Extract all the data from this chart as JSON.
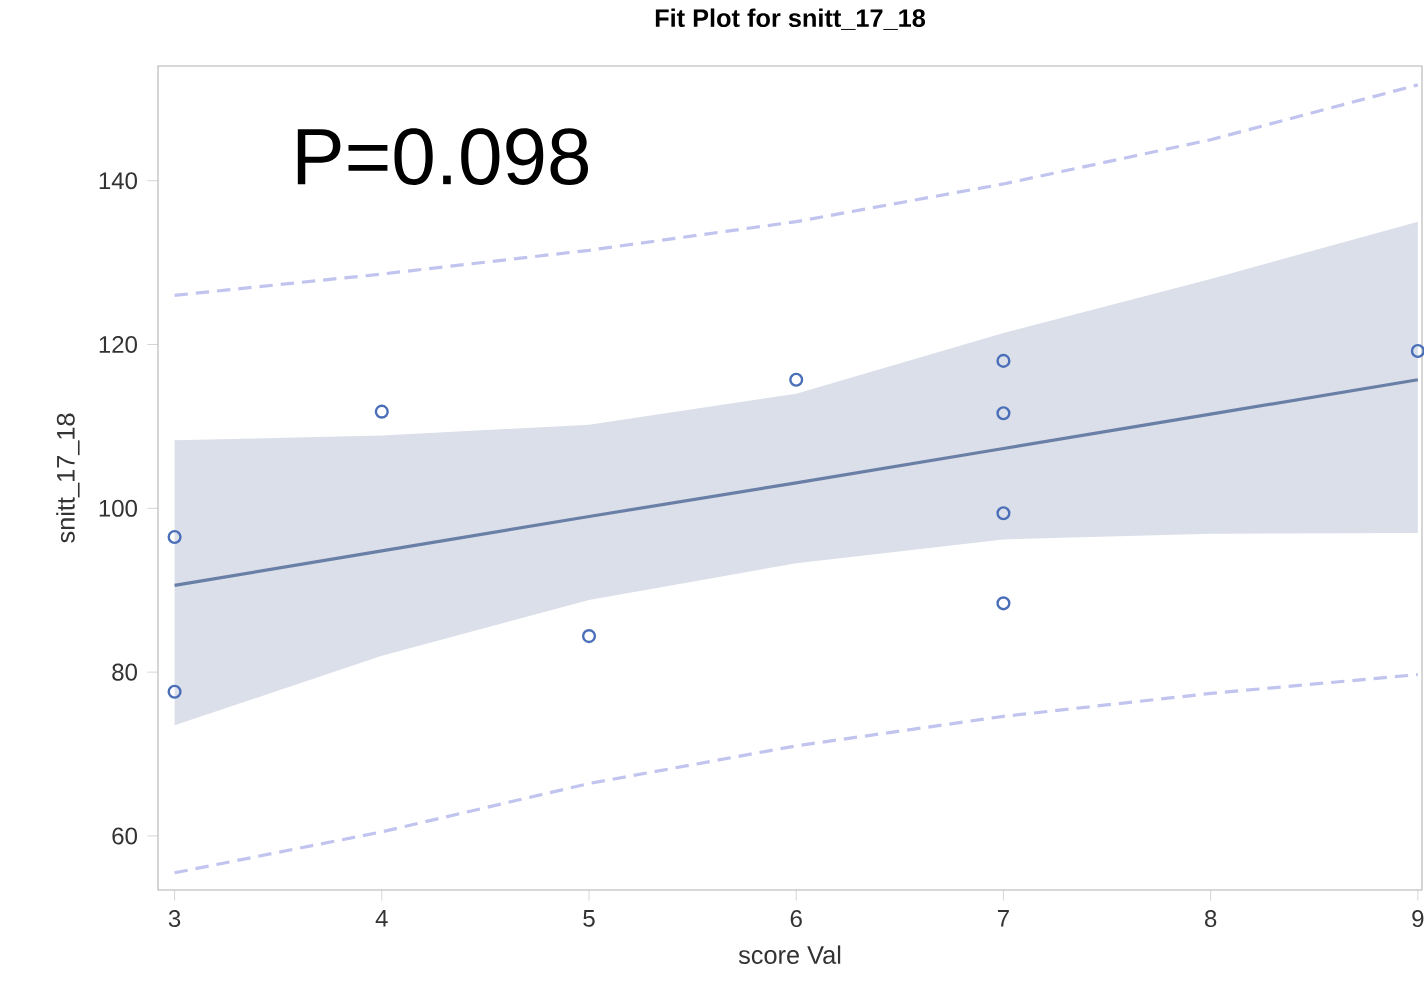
{
  "chart_data": {
    "type": "scatter",
    "title": "Fit Plot for snitt_17_18",
    "xlabel": "score Val",
    "ylabel": "snitt_17_18",
    "annotations": [
      "P=0.098"
    ],
    "xlim": [
      2.92,
      9.02
    ],
    "ylim": [
      53.4,
      154
    ],
    "xticks": [
      3,
      4,
      5,
      6,
      7,
      8,
      9
    ],
    "yticks": [
      60,
      80,
      100,
      120,
      140
    ],
    "series": [
      {
        "type": "line",
        "color": "#6a7fa6",
        "x": [
          3,
          4,
          5,
          6,
          7,
          8,
          9
        ],
        "values": [
          90.6,
          94.8,
          99.0,
          103.1,
          107.3,
          111.5,
          115.7
        ],
        "lower": [
          73.5,
          82.0,
          88.8,
          93.3,
          96.2,
          96.9,
          97.0
        ],
        "upper": [
          108.3,
          108.9,
          110.2,
          114.0,
          121.4,
          128.0,
          135.0
        ],
        "line_style": "solid",
        "marker": "none"
      },
      {
        "type": "line",
        "color": "#c0c4ee",
        "x": [
          3,
          4,
          5,
          6,
          7,
          8,
          9
        ],
        "values": [
          126.0,
          128.6,
          131.5,
          135.0,
          139.6,
          145.0,
          151.7
        ],
        "line_style": "dashed",
        "marker": "none"
      },
      {
        "type": "line",
        "color": "#c0c4ee",
        "x": [
          3,
          4,
          5,
          6,
          7,
          8,
          9
        ],
        "values": [
          55.5,
          60.5,
          66.4,
          71.0,
          74.6,
          77.4,
          79.7
        ],
        "line_style": "dashed",
        "marker": "none"
      },
      {
        "color": "#4a6fb8",
        "x": [
          3,
          3,
          4,
          5,
          6,
          7,
          7,
          7,
          7,
          9
        ],
        "values": [
          96.5,
          77.6,
          111.8,
          84.4,
          115.7,
          118.0,
          111.6,
          99.4,
          88.4,
          119.2
        ],
        "marker": "circle"
      }
    ]
  }
}
